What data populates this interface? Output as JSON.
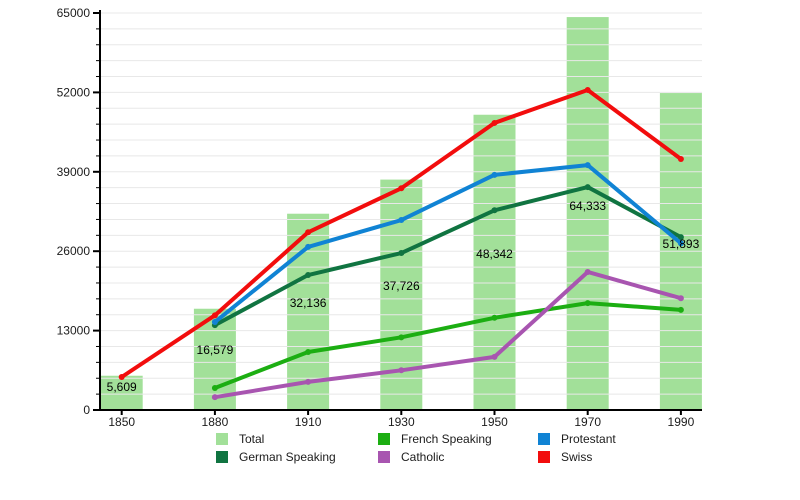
{
  "chart_data": {
    "type": "bar+line",
    "title": "",
    "xlabel": "",
    "ylabel": "",
    "categories": [
      "1850",
      "1880",
      "1910",
      "1930",
      "1950",
      "1970",
      "1990"
    ],
    "ylim": [
      0,
      65000
    ],
    "yticks": [
      0,
      13000,
      26000,
      39000,
      52000,
      65000
    ],
    "ytick_labels": [
      "0",
      "13000",
      "26000",
      "39000",
      "52000",
      "65000"
    ],
    "minor_step": 2600,
    "grid": "horizontal",
    "legend_position": "bottom",
    "bar_series": {
      "name": "Total",
      "values": [
        5609,
        16579,
        32136,
        37726,
        48342,
        64333,
        51893
      ],
      "labels": [
        "5,609",
        "16,579",
        "32,136",
        "37,726",
        "48,342",
        "64,333",
        "51,893"
      ]
    },
    "line_series": [
      {
        "name": "French Speaking",
        "values": [
          null,
          3600,
          9500,
          11900,
          15100,
          17500,
          16400
        ]
      },
      {
        "name": "Catholic",
        "values": [
          null,
          2100,
          4600,
          6500,
          8700,
          22600,
          18300
        ]
      },
      {
        "name": "German Speaking",
        "values": [
          null,
          13900,
          22100,
          25700,
          32700,
          36500,
          28300
        ]
      },
      {
        "name": "Protestant",
        "values": [
          null,
          14400,
          26700,
          31100,
          38500,
          40100,
          27300
        ]
      },
      {
        "name": "Swiss",
        "values": [
          5400,
          15500,
          29100,
          36300,
          47000,
          52400,
          41100
        ]
      }
    ]
  },
  "colors": {
    "Total": "#a2e099",
    "French Speaking": "#1cae12",
    "German Speaking": "#107441",
    "Protestant": "#1083d4",
    "Catholic": "#a855b0",
    "Swiss": "#f20d0d",
    "gridline": "#e8e8e8",
    "axis": "#000000",
    "text": "#1c1c1c"
  },
  "legend": {
    "entries": [
      "Total",
      "French Speaking",
      "Protestant",
      "German Speaking",
      "Catholic",
      "Swiss"
    ]
  }
}
